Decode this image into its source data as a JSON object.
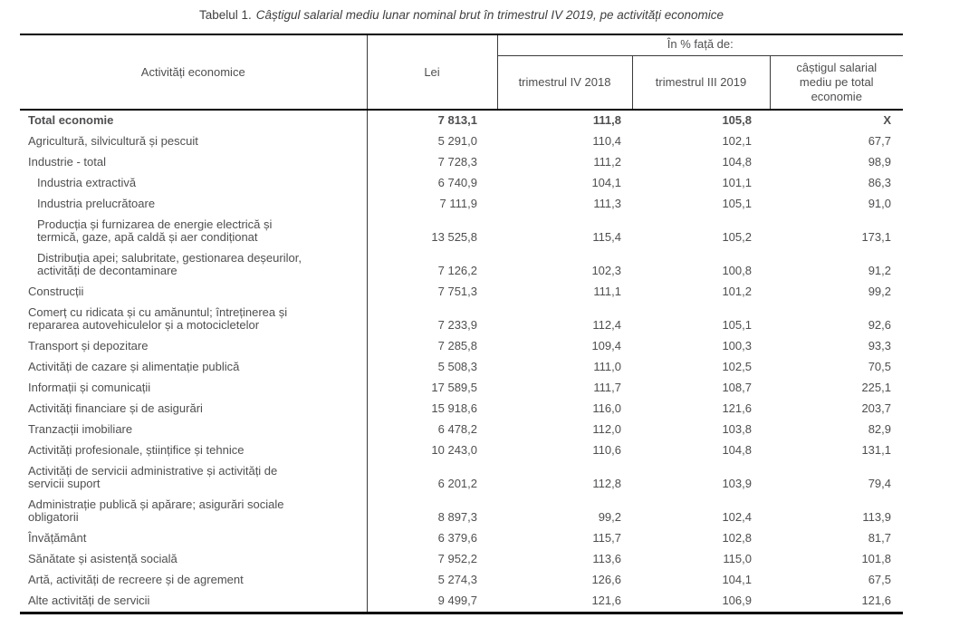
{
  "title": {
    "prefix": "Tabelul 1.",
    "text": "Câștigul salarial mediu lunar nominal brut în trimestrul IV 2019, pe activități economice"
  },
  "table": {
    "col_headers": {
      "activities": "Activități economice",
      "lei": "Lei",
      "pct_group": "În % față de:",
      "q4_2018": "trimestrul IV 2018",
      "q3_2019": "trimestrul III 2019",
      "avg_total": "câștigul salarial mediu pe total economie"
    },
    "rows": [
      {
        "label": "Total economie",
        "bold": true,
        "indent": false,
        "lei": "7 813,1",
        "vs_q4_2018": "111,8",
        "vs_q3_2019": "105,8",
        "vs_avg": "X"
      },
      {
        "label": "Agricultură, silvicultură și pescuit",
        "bold": false,
        "indent": false,
        "lei": "5 291,0",
        "vs_q4_2018": "110,4",
        "vs_q3_2019": "102,1",
        "vs_avg": "67,7"
      },
      {
        "label": "Industrie - total",
        "bold": false,
        "indent": false,
        "lei": "7 728,3",
        "vs_q4_2018": "111,2",
        "vs_q3_2019": "104,8",
        "vs_avg": "98,9"
      },
      {
        "label": "Industria extractivă",
        "bold": false,
        "indent": true,
        "lei": "6 740,9",
        "vs_q4_2018": "104,1",
        "vs_q3_2019": "101,1",
        "vs_avg": "86,3"
      },
      {
        "label": "Industria prelucrătoare",
        "bold": false,
        "indent": true,
        "lei": "7 111,9",
        "vs_q4_2018": "111,3",
        "vs_q3_2019": "105,1",
        "vs_avg": "91,0"
      },
      {
        "label": "Producția și furnizarea de energie electrică și\ntermică, gaze, apă caldă și aer condiționat",
        "bold": false,
        "indent": true,
        "lei": "13 525,8",
        "vs_q4_2018": "115,4",
        "vs_q3_2019": "105,2",
        "vs_avg": "173,1"
      },
      {
        "label": "Distribuția apei; salubritate, gestionarea deșeurilor,\nactivități de decontaminare",
        "bold": false,
        "indent": true,
        "lei": "7 126,2",
        "vs_q4_2018": "102,3",
        "vs_q3_2019": "100,8",
        "vs_avg": "91,2"
      },
      {
        "label": "Construcții",
        "bold": false,
        "indent": false,
        "lei": "7 751,3",
        "vs_q4_2018": "111,1",
        "vs_q3_2019": "101,2",
        "vs_avg": "99,2"
      },
      {
        "label": "Comerț cu ridicata și cu amănuntul; întreținerea și\nrepararea autovehiculelor și a motocicletelor",
        "bold": false,
        "indent": false,
        "lei": "7 233,9",
        "vs_q4_2018": "112,4",
        "vs_q3_2019": "105,1",
        "vs_avg": "92,6"
      },
      {
        "label": "Transport și depozitare",
        "bold": false,
        "indent": false,
        "lei": "7 285,8",
        "vs_q4_2018": "109,4",
        "vs_q3_2019": "100,3",
        "vs_avg": "93,3"
      },
      {
        "label": "Activități de cazare și alimentație publică",
        "bold": false,
        "indent": false,
        "lei": "5 508,3",
        "vs_q4_2018": "111,0",
        "vs_q3_2019": "102,5",
        "vs_avg": "70,5"
      },
      {
        "label": "Informații și comunicații",
        "bold": false,
        "indent": false,
        "lei": "17 589,5",
        "vs_q4_2018": "111,7",
        "vs_q3_2019": "108,7",
        "vs_avg": "225,1"
      },
      {
        "label": "Activități financiare și de asigurări",
        "bold": false,
        "indent": false,
        "lei": "15 918,6",
        "vs_q4_2018": "116,0",
        "vs_q3_2019": "121,6",
        "vs_avg": "203,7"
      },
      {
        "label": "Tranzacții imobiliare",
        "bold": false,
        "indent": false,
        "lei": "6 478,2",
        "vs_q4_2018": "112,0",
        "vs_q3_2019": "103,8",
        "vs_avg": "82,9"
      },
      {
        "label": "Activități profesionale, științifice și tehnice",
        "bold": false,
        "indent": false,
        "lei": "10 243,0",
        "vs_q4_2018": "110,6",
        "vs_q3_2019": "104,8",
        "vs_avg": "131,1"
      },
      {
        "label": "Activități de servicii administrative și activități de\nservicii suport",
        "bold": false,
        "indent": false,
        "lei": "6 201,2",
        "vs_q4_2018": "112,8",
        "vs_q3_2019": "103,9",
        "vs_avg": "79,4"
      },
      {
        "label": "Administrație publică și apărare; asigurări sociale\nobligatorii",
        "bold": false,
        "indent": false,
        "lei": "8 897,3",
        "vs_q4_2018": "99,2",
        "vs_q3_2019": "102,4",
        "vs_avg": "113,9"
      },
      {
        "label": "Învățământ",
        "bold": false,
        "indent": false,
        "lei": "6 379,6",
        "vs_q4_2018": "115,7",
        "vs_q3_2019": "102,8",
        "vs_avg": "81,7"
      },
      {
        "label": "Sănătate și asistență socială",
        "bold": false,
        "indent": false,
        "lei": "7 952,2",
        "vs_q4_2018": "113,6",
        "vs_q3_2019": "115,0",
        "vs_avg": "101,8"
      },
      {
        "label": "Artă, activități de recreere și de agrement",
        "bold": false,
        "indent": false,
        "lei": "5 274,3",
        "vs_q4_2018": "126,6",
        "vs_q3_2019": "104,1",
        "vs_avg": "67,5"
      },
      {
        "label": "Alte activități de servicii",
        "bold": false,
        "indent": false,
        "lei": "9 499,7",
        "vs_q4_2018": "121,6",
        "vs_q3_2019": "106,9",
        "vs_avg": "121,6"
      }
    ]
  }
}
